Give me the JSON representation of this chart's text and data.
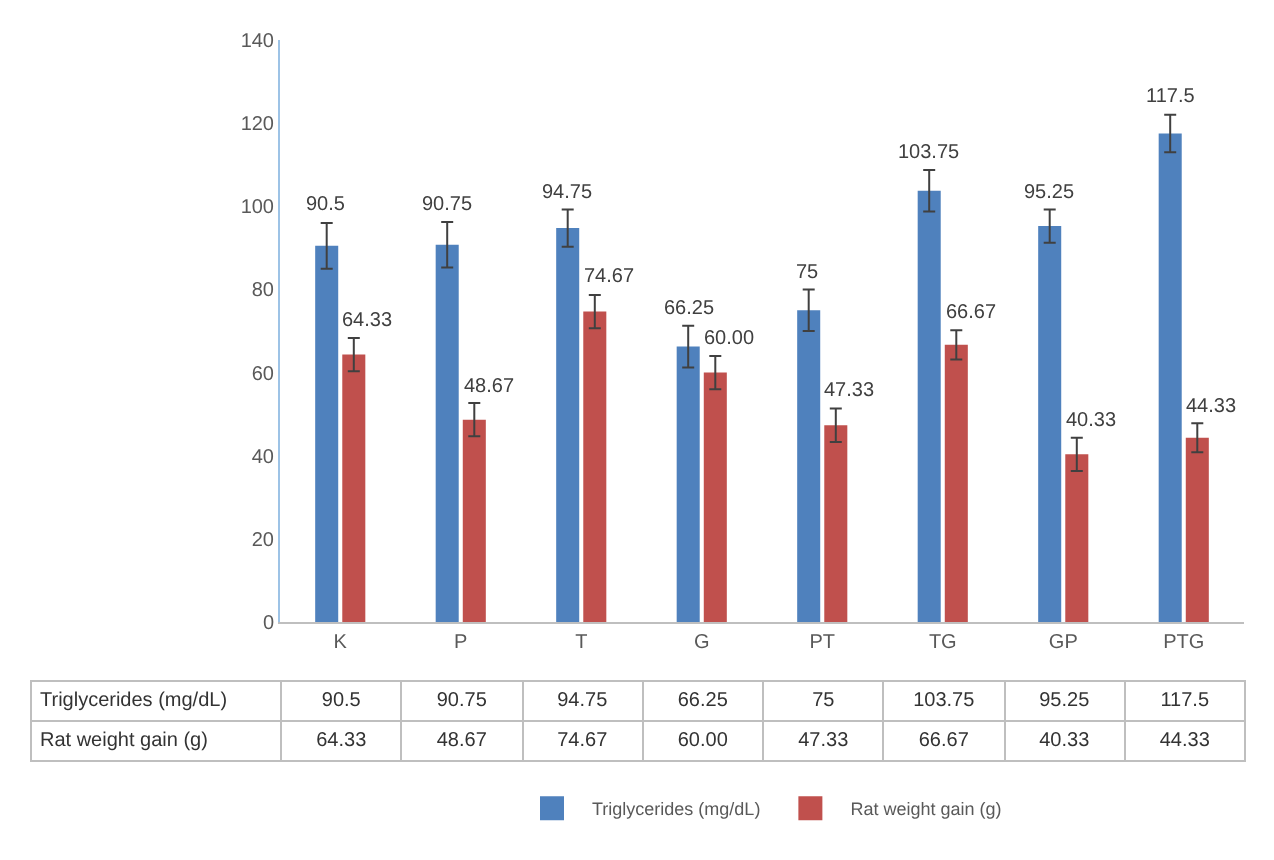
{
  "chart_data": {
    "type": "bar",
    "categories": [
      "K",
      "P",
      "T",
      "G",
      "PT",
      "TG",
      "GP",
      "PTG"
    ],
    "series": [
      {
        "name": "Triglycerides (mg/dL)",
        "color": "#4f81bd",
        "values": [
          90.5,
          90.75,
          94.75,
          66.25,
          75,
          103.75,
          95.25,
          117.5
        ],
        "value_labels": [
          "90.5",
          "90.75",
          "94.75",
          "66.25",
          "75",
          "103.75",
          "95.25",
          "117.5"
        ],
        "errors": [
          5.5,
          5.5,
          4.5,
          5,
          5,
          5,
          4,
          4.5
        ]
      },
      {
        "name": "Rat weight gain (g)",
        "color": "#c0504d",
        "values": [
          64.33,
          48.67,
          74.67,
          60,
          47.33,
          66.67,
          40.33,
          44.33
        ],
        "value_labels": [
          "64.33",
          "48.67",
          "74.67",
          "60.00",
          "47.33",
          "66.67",
          "40.33",
          "44.33"
        ],
        "errors": [
          4,
          4,
          4,
          4,
          4,
          3.5,
          4,
          3.5
        ]
      }
    ],
    "ylim": [
      0,
      140
    ],
    "yticks": [
      0,
      20,
      40,
      60,
      80,
      100,
      120,
      140
    ],
    "grid": false,
    "legend": "bottom"
  }
}
